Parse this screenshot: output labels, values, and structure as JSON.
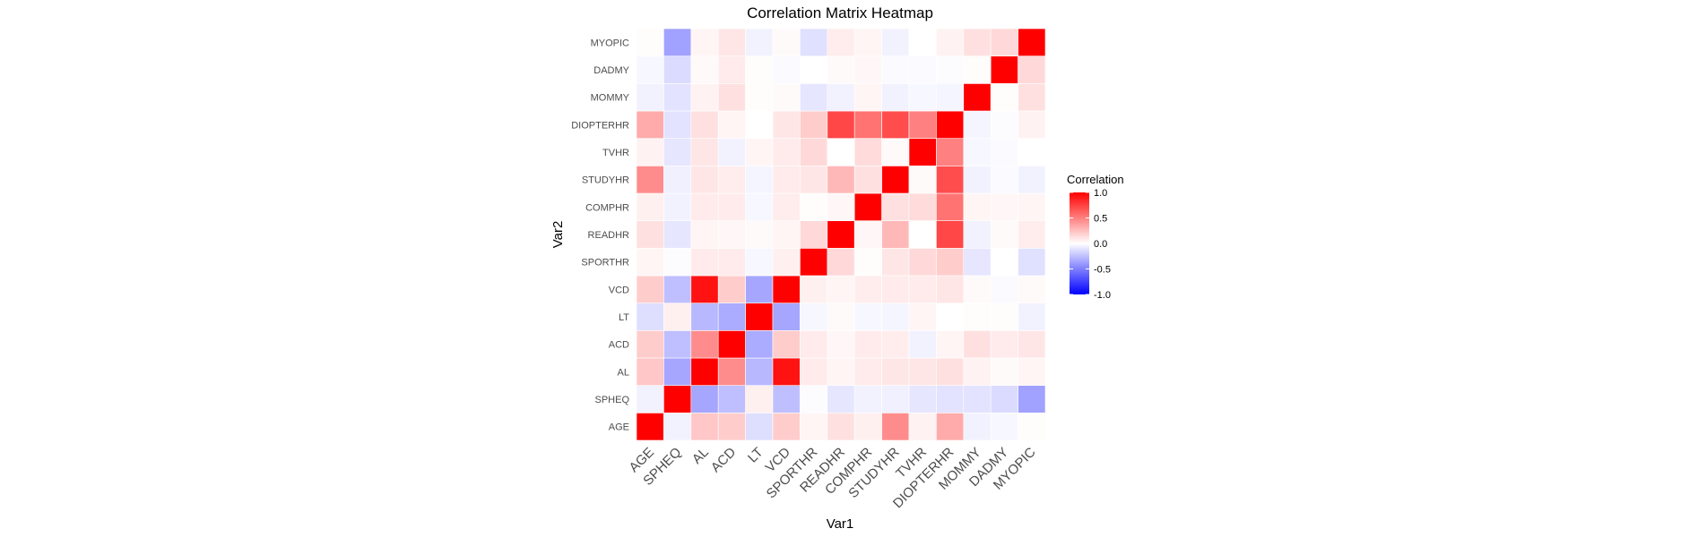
{
  "chart_data": {
    "type": "heatmap",
    "title": "Correlation Matrix Heatmap",
    "xlabel": "Var1",
    "ylabel": "Var2",
    "variables": [
      "AGE",
      "SPHEQ",
      "AL",
      "ACD",
      "LT",
      "VCD",
      "SPORTHR",
      "READHR",
      "COMPHR",
      "STUDYHR",
      "TVHR",
      "DIOPTERHR",
      "MOMMY",
      "DADMY",
      "MYOPIC"
    ],
    "matrix": [
      [
        1.0,
        -0.05,
        0.22,
        0.2,
        -0.13,
        0.2,
        0.04,
        0.12,
        0.06,
        0.45,
        0.05,
        0.33,
        -0.05,
        -0.03,
        0.01
      ],
      [
        -0.05,
        1.0,
        -0.35,
        -0.25,
        0.06,
        -0.25,
        -0.01,
        -0.1,
        -0.05,
        -0.06,
        -0.1,
        -0.11,
        -0.11,
        -0.14,
        -0.37
      ],
      [
        0.22,
        -0.35,
        1.0,
        0.45,
        -0.28,
        0.93,
        0.08,
        0.04,
        0.08,
        0.1,
        0.1,
        0.12,
        0.05,
        0.02,
        0.04
      ],
      [
        0.2,
        -0.25,
        0.45,
        1.0,
        -0.33,
        0.2,
        0.08,
        0.03,
        0.08,
        0.07,
        -0.05,
        0.04,
        0.12,
        0.08,
        0.1
      ],
      [
        -0.13,
        0.06,
        -0.28,
        -0.33,
        1.0,
        -0.35,
        -0.03,
        0.02,
        -0.03,
        -0.04,
        0.04,
        0.0,
        0.01,
        0.01,
        -0.05
      ],
      [
        0.2,
        -0.25,
        0.93,
        0.2,
        -0.35,
        1.0,
        0.06,
        0.04,
        0.07,
        0.08,
        0.08,
        0.1,
        0.02,
        -0.02,
        0.02
      ],
      [
        0.04,
        -0.01,
        0.08,
        0.08,
        -0.03,
        0.06,
        1.0,
        0.15,
        0.01,
        0.1,
        0.15,
        0.2,
        -0.1,
        0.0,
        -0.12
      ],
      [
        0.12,
        -0.1,
        0.04,
        0.03,
        0.02,
        0.04,
        0.15,
        1.0,
        0.03,
        0.28,
        0.0,
        0.72,
        -0.05,
        0.02,
        0.07
      ],
      [
        0.06,
        -0.05,
        0.08,
        0.08,
        -0.03,
        0.07,
        0.01,
        0.03,
        1.0,
        0.12,
        0.14,
        0.55,
        0.04,
        0.03,
        0.04
      ],
      [
        0.45,
        -0.06,
        0.1,
        0.07,
        -0.04,
        0.08,
        0.1,
        0.28,
        0.12,
        1.0,
        0.02,
        0.7,
        -0.05,
        -0.02,
        -0.05
      ],
      [
        0.05,
        -0.1,
        0.1,
        -0.05,
        0.04,
        0.08,
        0.15,
        0.0,
        0.14,
        0.02,
        1.0,
        0.5,
        -0.03,
        -0.02,
        0.0
      ],
      [
        0.33,
        -0.11,
        0.12,
        0.04,
        0.0,
        0.1,
        0.2,
        0.72,
        0.55,
        0.7,
        0.5,
        1.0,
        -0.04,
        -0.01,
        0.05
      ],
      [
        -0.05,
        -0.11,
        0.05,
        0.12,
        0.01,
        0.02,
        -0.1,
        -0.05,
        0.04,
        -0.05,
        -0.03,
        -0.04,
        1.0,
        0.01,
        0.12
      ],
      [
        -0.03,
        -0.14,
        0.02,
        0.08,
        0.01,
        -0.02,
        0.0,
        0.02,
        0.03,
        -0.02,
        -0.02,
        -0.01,
        0.01,
        1.0,
        0.15
      ],
      [
        0.01,
        -0.37,
        0.04,
        0.1,
        -0.05,
        0.02,
        -0.12,
        0.07,
        0.04,
        -0.05,
        0.0,
        0.05,
        0.12,
        0.15,
        1.0
      ]
    ],
    "color_scale": {
      "low": "#0000ff",
      "mid": "#ffffff",
      "high": "#ff0000",
      "limits": [
        -1,
        1
      ]
    },
    "legend": {
      "title": "Correlation",
      "ticks": [
        "1.0",
        "0.5",
        "0.0",
        "-0.5",
        "-1.0"
      ],
      "placement": "right"
    },
    "grid": false
  }
}
